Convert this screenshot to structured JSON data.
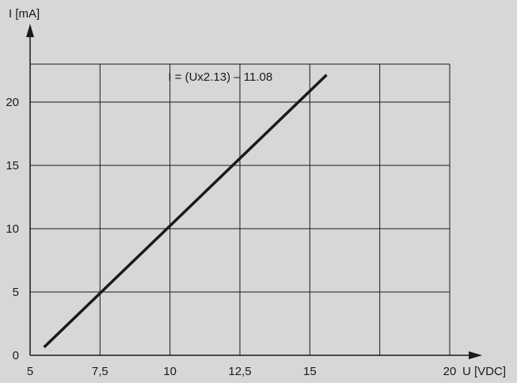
{
  "chart_data": {
    "type": "line",
    "x_axis": {
      "label": "U [VDC]",
      "range": [
        5,
        20
      ],
      "ticks": [
        5,
        7.5,
        10,
        12.5,
        15,
        20
      ],
      "tick_labels": [
        "5",
        "7,5",
        "10",
        "12,5",
        "15",
        "20"
      ],
      "gridlines": [
        5,
        7.5,
        10,
        12.5,
        15,
        17.5,
        20
      ]
    },
    "y_axis": {
      "label": "I [mA]",
      "range": [
        0,
        23
      ],
      "ticks": [
        0,
        5,
        10,
        15,
        20
      ],
      "tick_labels": [
        "0",
        "5",
        "10",
        "15",
        "20"
      ],
      "gridlines": [
        0,
        5,
        10,
        15,
        20,
        23
      ]
    },
    "grid": true,
    "series": [
      {
        "x": [
          5.5,
          15.6
        ],
        "y": [
          0.64,
          22.15
        ],
        "color": "#1a1a1a"
      }
    ],
    "annotation": {
      "text": "I = (Ux2.13) – 11.08",
      "x": 11.8,
      "y": 21.7
    },
    "colors": {
      "background": "#d6d7d9",
      "grid": "#1a1a1a",
      "line": "#1a1a1a"
    }
  }
}
